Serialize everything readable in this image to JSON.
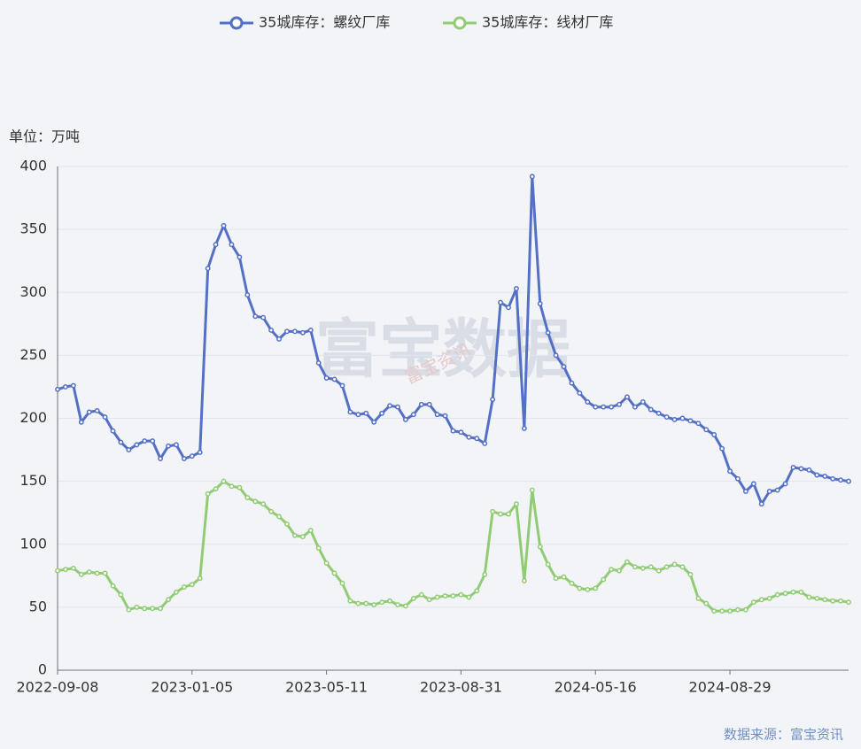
{
  "chart_data": {
    "type": "line",
    "unit": "单位：万吨",
    "source": "数据来源：富宝资讯",
    "watermark": "富宝数据",
    "watermark_small": "富宝资讯",
    "categories": [
      "2022-09-08",
      null,
      null,
      null,
      null,
      null,
      null,
      null,
      null,
      null,
      null,
      null,
      null,
      null,
      null,
      null,
      null,
      "2023-01-05",
      null,
      null,
      null,
      null,
      null,
      null,
      null,
      null,
      null,
      null,
      null,
      null,
      null,
      null,
      null,
      null,
      "2023-05-11",
      null,
      null,
      null,
      null,
      null,
      null,
      null,
      null,
      null,
      null,
      null,
      null,
      null,
      null,
      null,
      null,
      "2023-08-31",
      null,
      null,
      null,
      null,
      null,
      null,
      null,
      null,
      null,
      null,
      null,
      null,
      null,
      null,
      null,
      null,
      "2024-05-16",
      null,
      null,
      null,
      null,
      null,
      null,
      null,
      null,
      null,
      null,
      null,
      null,
      null,
      null,
      null,
      null,
      "2024-08-29",
      null,
      null,
      null,
      null,
      null,
      null,
      null,
      null,
      null,
      null,
      null,
      null,
      null,
      null,
      null
    ],
    "series": [
      {
        "name": "35城库存：螺纹厂库",
        "color": "#5470c6",
        "values": [
          223,
          225,
          226,
          197,
          205,
          206,
          201,
          190,
          181,
          175,
          179,
          182,
          182,
          168,
          178,
          179,
          168,
          170,
          173,
          319,
          338,
          353,
          338,
          328,
          298,
          281,
          280,
          270,
          263,
          269,
          269,
          268,
          270,
          244,
          232,
          231,
          226,
          205,
          203,
          204,
          197,
          204,
          210,
          209,
          199,
          203,
          211,
          211,
          203,
          202,
          190,
          189,
          185,
          184,
          180,
          215,
          292,
          288,
          303,
          192,
          392,
          291,
          268,
          250,
          241,
          228,
          220,
          213,
          209,
          209,
          209,
          211,
          217,
          209,
          213,
          207,
          204,
          201,
          199,
          200,
          198,
          196,
          191,
          187,
          176,
          158,
          152,
          142,
          148,
          132,
          142,
          143,
          148,
          161,
          160,
          159,
          155,
          154,
          152,
          151,
          150
        ]
      },
      {
        "name": "35城库存：线材厂库",
        "color": "#91cc75",
        "values": [
          79,
          80,
          81,
          76,
          78,
          77,
          77,
          67,
          60,
          48,
          50,
          49,
          49,
          49,
          56,
          62,
          66,
          68,
          73,
          140,
          144,
          150,
          146,
          145,
          137,
          134,
          132,
          126,
          122,
          116,
          107,
          106,
          111,
          97,
          85,
          77,
          69,
          55,
          53,
          53,
          52,
          54,
          55,
          52,
          51,
          57,
          60,
          56,
          58,
          59,
          59,
          60,
          58,
          63,
          76,
          126,
          124,
          124,
          132,
          71,
          143,
          98,
          84,
          73,
          74,
          69,
          65,
          64,
          65,
          72,
          80,
          79,
          86,
          82,
          81,
          82,
          79,
          82,
          84,
          82,
          76,
          57,
          53,
          47,
          47,
          47,
          48,
          48,
          54,
          56,
          57,
          60,
          61,
          62,
          62,
          58,
          57,
          56,
          55,
          55,
          54
        ]
      }
    ],
    "ylim": [
      0,
      400
    ],
    "yticks": [
      0,
      50,
      100,
      150,
      200,
      250,
      300,
      350,
      400
    ],
    "grid": true
  }
}
